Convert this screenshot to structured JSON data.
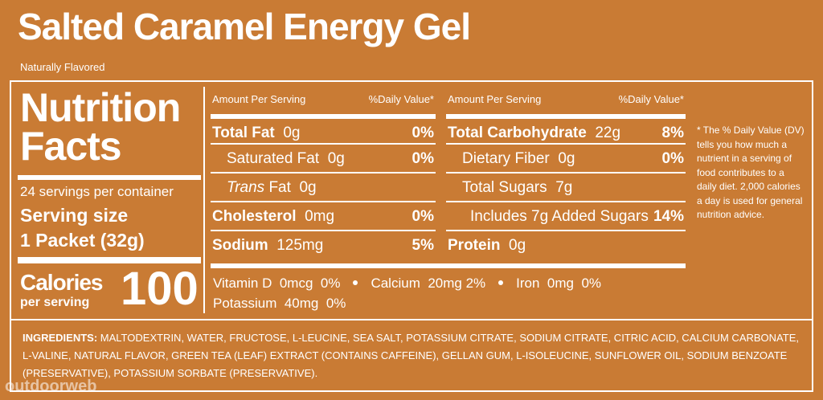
{
  "title": "Salted Caramel Energy Gel",
  "subtitle": "Naturally Flavored",
  "facts": {
    "heading": [
      "Nutrition",
      "Facts"
    ],
    "servings_per_container": "24 servings per container",
    "serving_size_label": "Serving size",
    "serving_size": "1 Packet (32g)",
    "calories_label": "Calories",
    "calories_sub": "per serving",
    "calories": 100
  },
  "left_table": {
    "header": [
      "Amount Per Serving",
      "%Daily Value*"
    ],
    "rows": [
      {
        "name": "Total Fat",
        "amount": "0g",
        "dv": "0%"
      },
      {
        "name": "Saturated Fat",
        "amount": "0g",
        "dv": "0%"
      },
      {
        "name_italic": "Trans",
        "name": "Fat",
        "amount": "0g"
      },
      {
        "name": "Cholesterol",
        "amount": "0mg",
        "dv": "0%"
      },
      {
        "name": "Sodium",
        "amount": "125mg",
        "dv": "5%"
      }
    ]
  },
  "right_table": {
    "header": [
      "Amount Per Serving",
      "%Daily Value*"
    ],
    "rows": [
      {
        "name": "Total Carbohydrate",
        "amount": "22g",
        "dv": "8%"
      },
      {
        "name": "Dietary Fiber",
        "amount": "0g",
        "dv": "0%"
      },
      {
        "name": "Total Sugars",
        "amount": "7g"
      },
      {
        "name": "Includes 7g Added Sugars",
        "dv": "14%"
      },
      {
        "name": "Protein",
        "amount": "0g"
      }
    ]
  },
  "footnote": "* The % Daily Value (DV) tells you how much a nutrient in a serving of food contributes to a daily diet. 2,000 calories a day is used for general nutrition advice.",
  "vitamins": [
    [
      "Vitamin D",
      "0mcg",
      "0%"
    ],
    [
      "Calcium",
      "20mg",
      "2%"
    ],
    [
      "Iron",
      "0mg",
      "0%"
    ],
    [
      "Potassium",
      "40mg",
      "0%"
    ]
  ],
  "ingredients": {
    "label": "INGREDIENTS:",
    "text": "MALTODEXTRIN, WATER, FRUCTOSE, L-LEUCINE, SEA SALT, POTASSIUM CITRATE, SODIUM CITRATE, CITRIC ACID, CALCIUM CARBONATE, L-VALINE, NATURAL FLAVOR, GREEN TEA (LEAF) EXTRACT (CONTAINS CAFFEINE), GELLAN GUM, L-ISOLEUCINE, SUNFLOWER OIL, SODIUM BENZOATE (PRESERVATIVE), POTASSIUM SORBATE (PRESERVATIVE)."
  },
  "watermark": "outdoorweb"
}
